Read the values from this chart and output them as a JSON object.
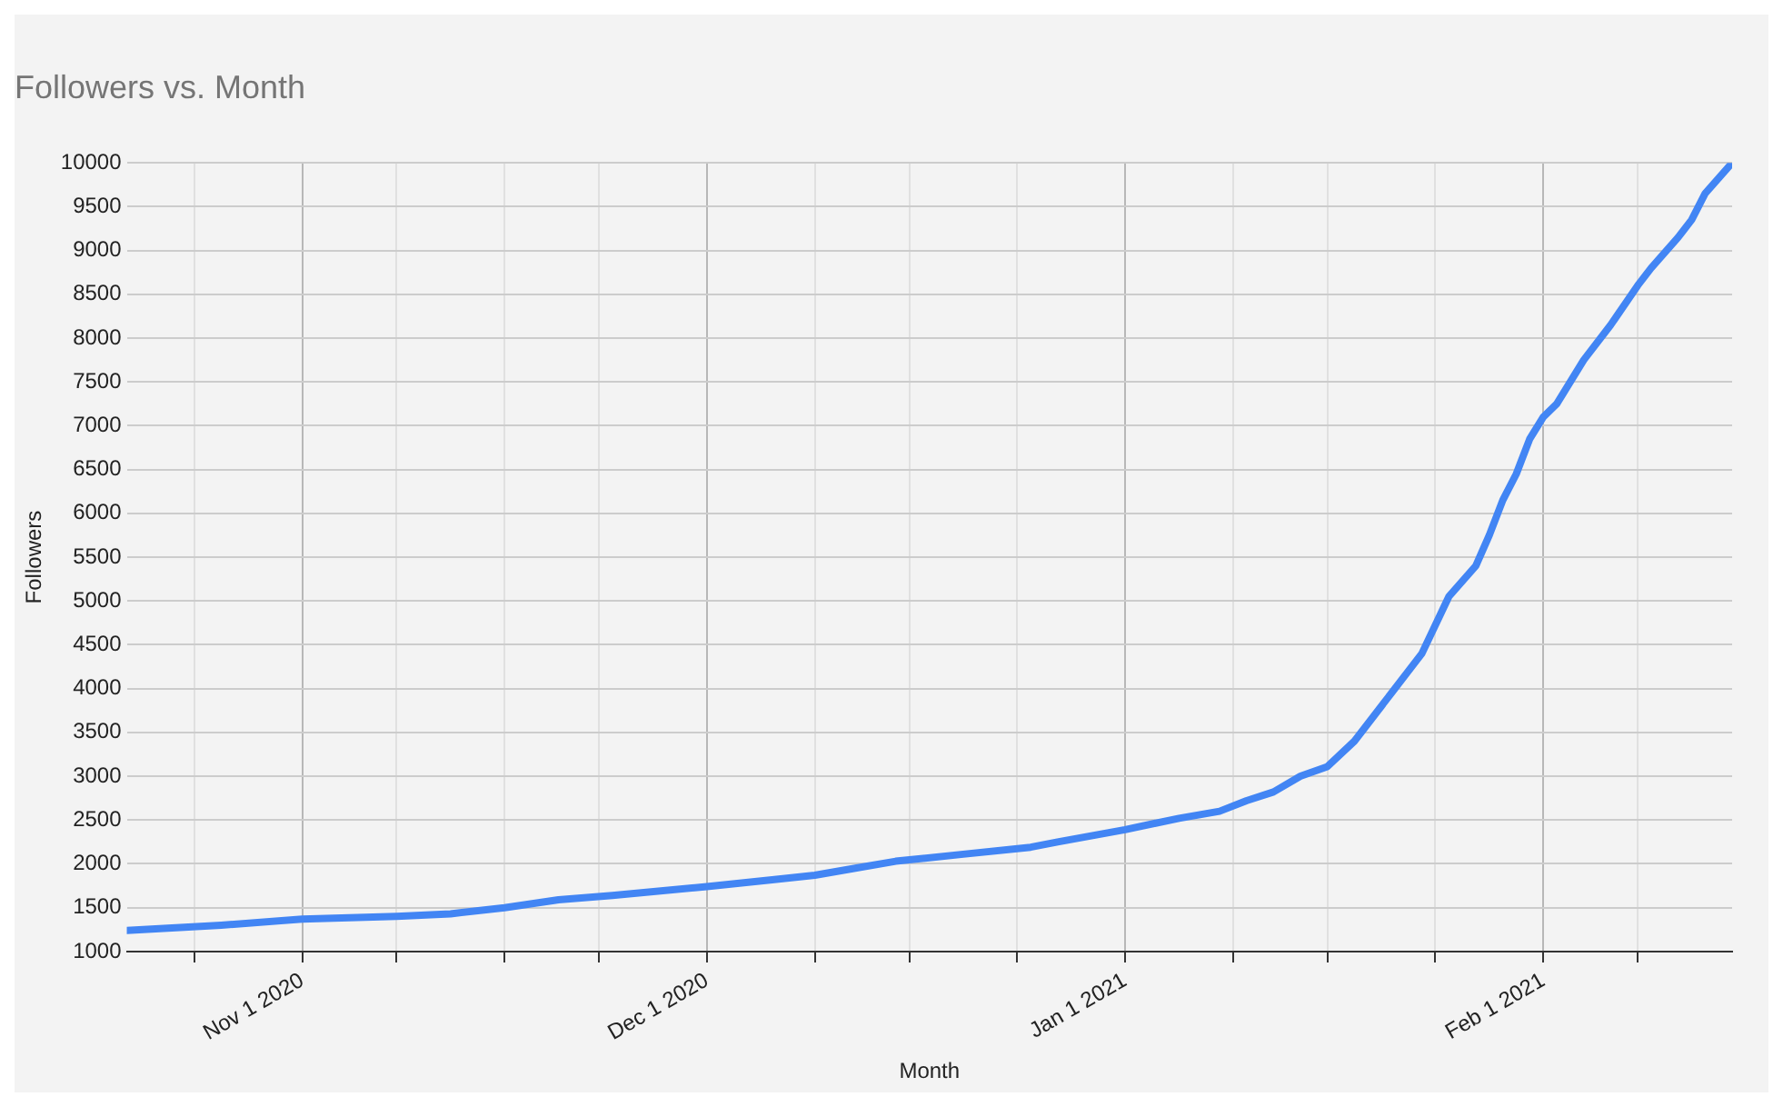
{
  "chart_data": {
    "type": "line",
    "title": "Followers vs. Month",
    "xlabel": "Month",
    "ylabel": "Followers",
    "x": [
      "2020-10-19",
      "2020-10-26",
      "2020-11-01",
      "2020-11-08",
      "2020-11-12",
      "2020-11-16",
      "2020-11-20",
      "2020-11-24",
      "2020-12-01",
      "2020-12-06",
      "2020-12-09",
      "2020-12-12",
      "2020-12-15",
      "2020-12-20",
      "2020-12-25",
      "2020-12-27",
      "2021-01-01",
      "2021-01-05",
      "2021-01-08",
      "2021-01-10",
      "2021-01-12",
      "2021-01-14",
      "2021-01-16",
      "2021-01-18",
      "2021-01-20",
      "2021-01-22",
      "2021-01-23",
      "2021-01-25",
      "2021-01-27",
      "2021-01-28",
      "2021-01-29",
      "2021-01-30",
      "2021-01-31",
      "2021-02-01",
      "2021-02-02",
      "2021-02-04",
      "2021-02-06",
      "2021-02-08",
      "2021-02-09",
      "2021-02-11",
      "2021-02-12",
      "2021-02-13",
      "2021-02-15"
    ],
    "series": [
      {
        "color": "#4285f4",
        "values": [
          1240,
          1300,
          1370,
          1400,
          1430,
          1500,
          1590,
          1640,
          1740,
          1820,
          1870,
          1950,
          2030,
          2110,
          2190,
          2250,
          2390,
          2520,
          2600,
          2720,
          2820,
          3000,
          3110,
          3400,
          3800,
          4200,
          4400,
          5050,
          5400,
          5750,
          6150,
          6450,
          6850,
          7100,
          7250,
          7750,
          8150,
          8600,
          8800,
          9150,
          9350,
          9650,
          10000
        ]
      }
    ],
    "xlim": [
      "2020-10-19",
      "2021-02-15"
    ],
    "xticks": [
      {
        "value": "2020-10-24",
        "label": null
      },
      {
        "value": "2020-11-01",
        "label": "Nov 1 2020"
      },
      {
        "value": "2020-11-08",
        "label": null
      },
      {
        "value": "2020-11-16",
        "label": null
      },
      {
        "value": "2020-11-23",
        "label": null
      },
      {
        "value": "2020-12-01",
        "label": "Dec 1 2020"
      },
      {
        "value": "2020-12-09",
        "label": null
      },
      {
        "value": "2020-12-16",
        "label": null
      },
      {
        "value": "2020-12-24",
        "label": null
      },
      {
        "value": "2021-01-01",
        "label": "Jan 1 2021"
      },
      {
        "value": "2021-01-09",
        "label": null
      },
      {
        "value": "2021-01-16",
        "label": null
      },
      {
        "value": "2021-01-24",
        "label": null
      },
      {
        "value": "2021-02-01",
        "label": "Feb 1 2021"
      },
      {
        "value": "2021-02-08",
        "label": null
      }
    ],
    "ylim": [
      1000,
      10000
    ],
    "yticks": [
      1000,
      1500,
      2000,
      2500,
      3000,
      3500,
      4000,
      4500,
      5000,
      5500,
      6000,
      6500,
      7000,
      7500,
      8000,
      8500,
      9000,
      9500,
      10000
    ],
    "grid": true,
    "marker": "none",
    "line_style": "solid"
  }
}
